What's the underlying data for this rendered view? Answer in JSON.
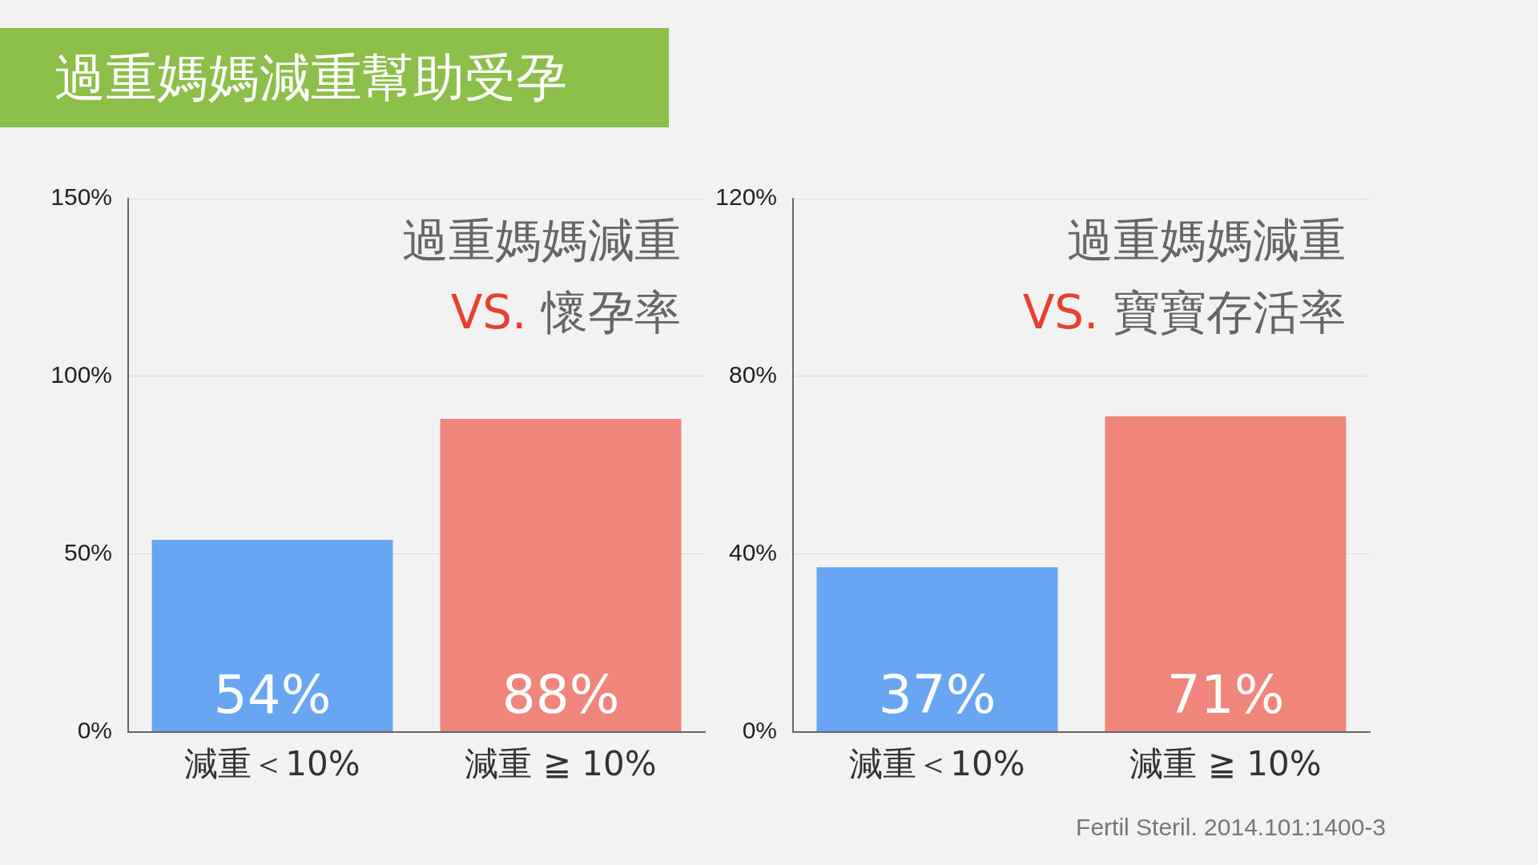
{
  "chart_data": [
    {
      "type": "bar",
      "title": "過重媽媽減重幫助受孕",
      "annotations": [
        "過重媽媽減重",
        "VS. 懷孕率"
      ],
      "categories": [
        "減重＜10%",
        "減重 ≧ 10%"
      ],
      "values": [
        54,
        88
      ],
      "colors": [
        "#68a5f2",
        "#f0857c"
      ],
      "value_labels": [
        "54%",
        "88%"
      ],
      "ylim": [
        0,
        150
      ],
      "yticks": [
        {
          "value": 0,
          "label": "0%"
        },
        {
          "value": 50,
          "label": "50%"
        },
        {
          "value": 100,
          "label": "100%"
        },
        {
          "value": 150,
          "label": "150%"
        }
      ],
      "grid": "y",
      "legend": false
    },
    {
      "type": "bar",
      "annotations": [
        "過重媽媽減重",
        "VS. 寶寶存活率",
        "Fertil Steril. 2014.101:1400-3"
      ],
      "categories": [
        "減重＜10%",
        "減重 ≧ 10%"
      ],
      "values": [
        37,
        71
      ],
      "colors": [
        "#68a5f2",
        "#f0857c"
      ],
      "value_labels": [
        "37%",
        "71%"
      ],
      "ylim": [
        0,
        120
      ],
      "yticks": [
        {
          "value": 0,
          "label": "0%"
        },
        {
          "value": 40,
          "label": "40%"
        },
        {
          "value": 80,
          "label": "80%"
        },
        {
          "value": 120,
          "label": "120%"
        }
      ],
      "grid": "y",
      "legend": false
    }
  ]
}
